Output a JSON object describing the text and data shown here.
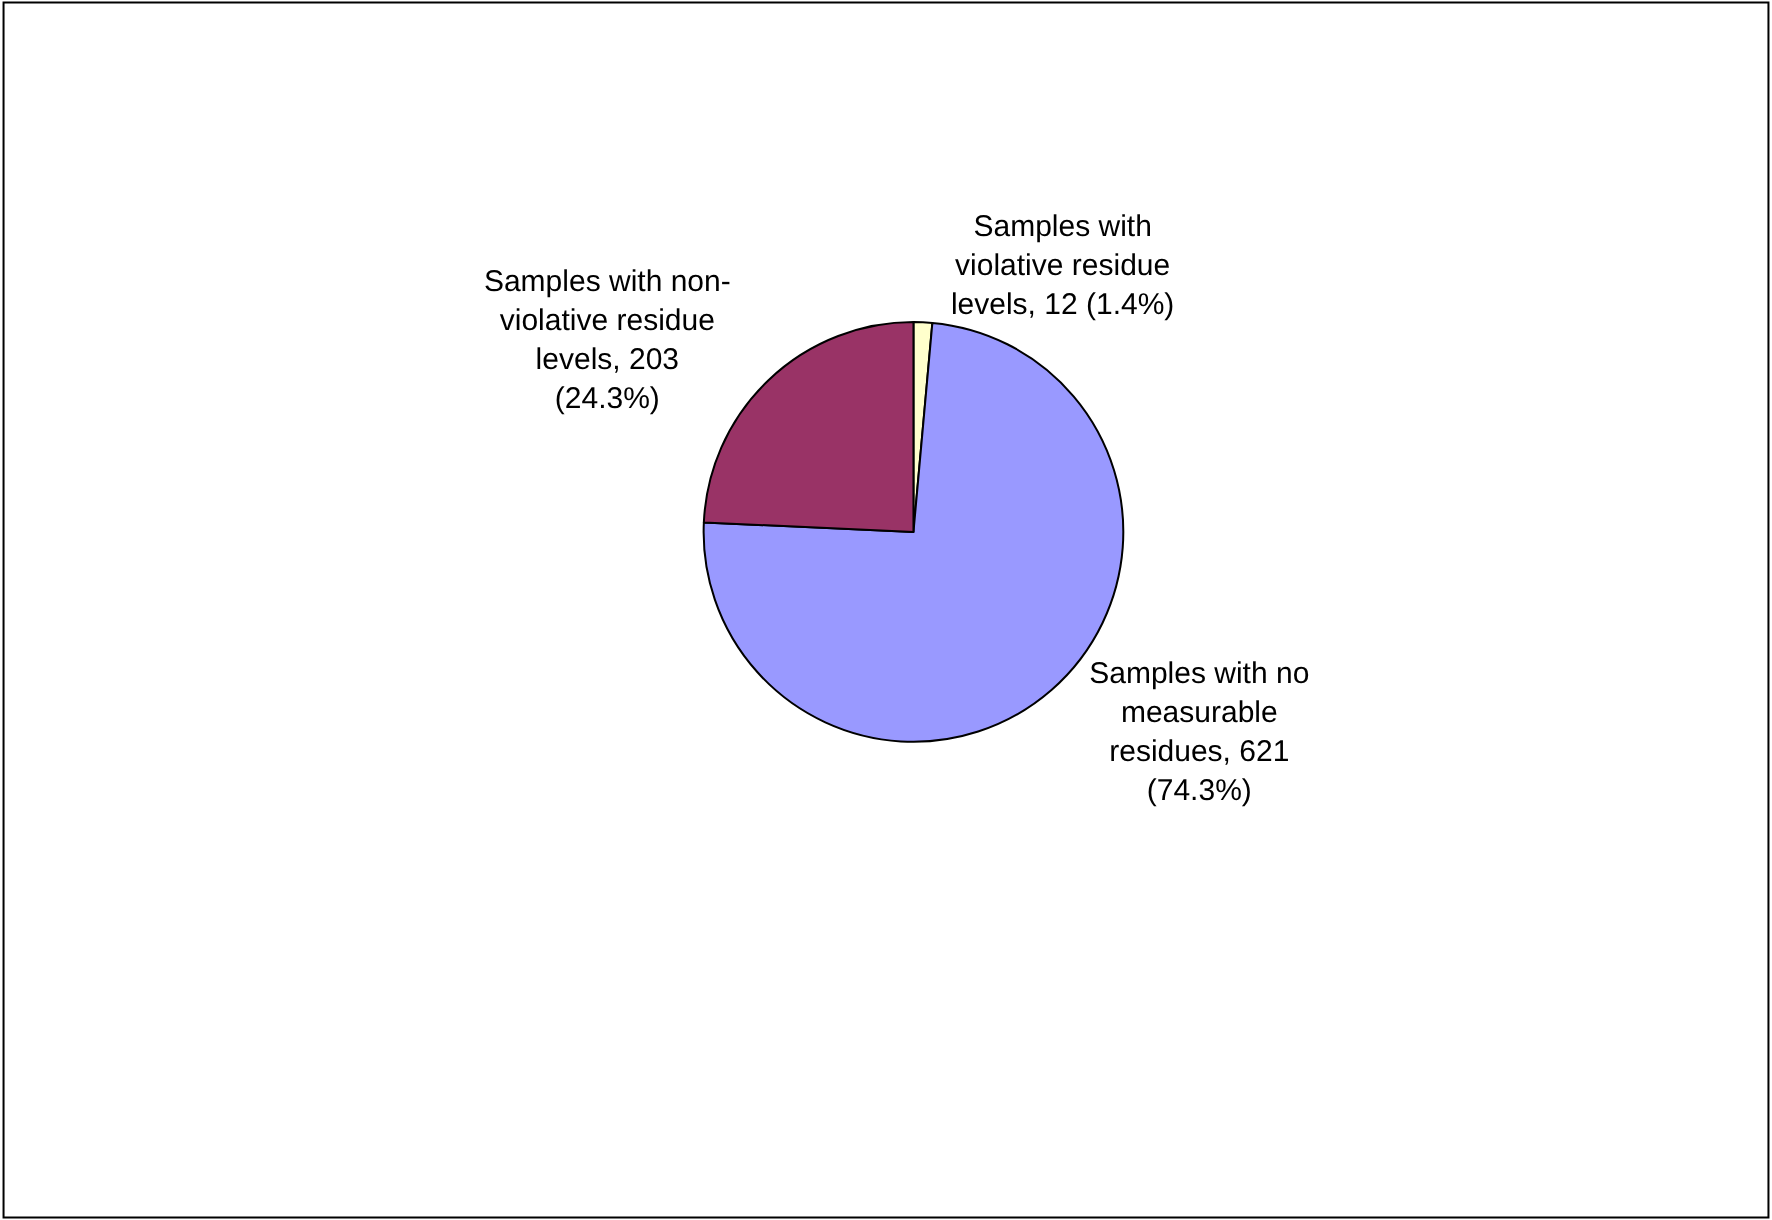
{
  "chart_data": {
    "type": "pie",
    "categories": [
      "Samples with violative residue levels",
      "Samples with no measurable residues",
      "Samples with non-violative residue levels"
    ],
    "values": [
      12,
      621,
      203
    ],
    "value_labels": [
      "12 (1.4%)",
      "621 (74.3%)",
      "203 (24.3%)"
    ],
    "colors": [
      "#ffffcc",
      "#9999ff",
      "#993366"
    ],
    "legend": false
  }
}
